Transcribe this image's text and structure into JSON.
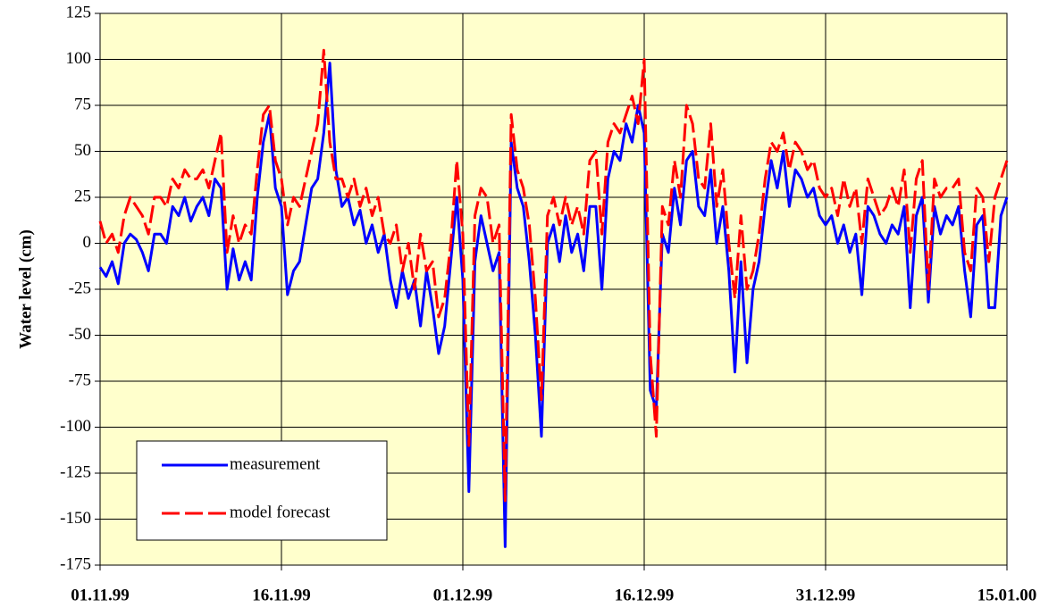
{
  "chart_data": {
    "type": "line",
    "y_label": "Water level (cm)",
    "categories": [
      "01.11.99",
      null,
      null,
      null,
      null,
      null,
      null,
      null,
      null,
      null,
      null,
      null,
      null,
      null,
      null,
      null,
      null,
      null,
      null,
      null,
      null,
      null,
      null,
      null,
      null,
      null,
      null,
      null,
      null,
      null,
      "16.11.99",
      null,
      null,
      null,
      null,
      null,
      null,
      null,
      null,
      null,
      null,
      null,
      null,
      null,
      null,
      null,
      null,
      null,
      null,
      null,
      null,
      null,
      null,
      null,
      null,
      null,
      null,
      null,
      null,
      null,
      "01.12.99",
      null,
      null,
      null,
      null,
      null,
      null,
      null,
      null,
      null,
      null,
      null,
      null,
      null,
      null,
      null,
      null,
      null,
      null,
      null,
      null,
      null,
      null,
      null,
      null,
      null,
      null,
      null,
      null,
      null,
      "16.12.99",
      null,
      null,
      null,
      null,
      null,
      null,
      null,
      null,
      null,
      null,
      null,
      null,
      null,
      null,
      null,
      null,
      null,
      null,
      null,
      null,
      null,
      null,
      null,
      null,
      null,
      null,
      null,
      null,
      null,
      "31.12.99",
      null,
      null,
      null,
      null,
      null,
      null,
      null,
      null,
      null,
      null,
      null,
      null,
      null,
      null,
      null,
      null,
      null,
      null,
      null,
      null,
      null,
      null,
      null,
      null,
      null,
      null,
      null,
      null,
      null,
      "15.01.00"
    ],
    "series": [
      {
        "name": "measurement",
        "color": "#0000ff",
        "dash": false,
        "values": [
          -13,
          -18,
          -10,
          -22,
          0,
          5,
          2,
          -5,
          -15,
          5,
          5,
          0,
          20,
          15,
          25,
          12,
          20,
          25,
          15,
          35,
          30,
          -25,
          -3,
          -20,
          -10,
          -20,
          25,
          55,
          70,
          30,
          20,
          -28,
          -15,
          -10,
          10,
          30,
          35,
          60,
          98,
          40,
          20,
          25,
          10,
          18,
          0,
          10,
          -5,
          5,
          -20,
          -35,
          -15,
          -30,
          -20,
          -45,
          -15,
          -35,
          -60,
          -45,
          -10,
          25,
          -20,
          -135,
          -10,
          15,
          0,
          -15,
          -5,
          -165,
          55,
          30,
          20,
          -10,
          -50,
          -105,
          0,
          10,
          -10,
          15,
          -5,
          5,
          -15,
          20,
          20,
          -25,
          35,
          50,
          45,
          65,
          55,
          75,
          60,
          -80,
          -90,
          5,
          -5,
          30,
          10,
          45,
          50,
          20,
          15,
          40,
          0,
          20,
          -15,
          -70,
          -10,
          -65,
          -25,
          -10,
          20,
          45,
          30,
          50,
          20,
          40,
          35,
          25,
          30,
          15,
          10,
          15,
          0,
          10,
          -5,
          5,
          -28,
          20,
          15,
          5,
          0,
          10,
          5,
          20,
          -35,
          15,
          25,
          -32,
          20,
          5,
          15,
          10,
          20,
          -15,
          -40,
          10,
          15,
          -35,
          -35,
          15,
          25
        ]
      },
      {
        "name": "model forecast",
        "color": "#ff0000",
        "dash": true,
        "values": [
          12,
          0,
          5,
          -5,
          15,
          25,
          20,
          15,
          5,
          25,
          25,
          20,
          35,
          30,
          40,
          35,
          35,
          40,
          30,
          45,
          60,
          -5,
          15,
          0,
          10,
          5,
          40,
          70,
          75,
          45,
          35,
          10,
          25,
          20,
          35,
          50,
          65,
          105,
          55,
          35,
          35,
          25,
          35,
          20,
          30,
          15,
          25,
          5,
          0,
          10,
          -15,
          0,
          -25,
          5,
          -15,
          -10,
          -40,
          -30,
          0,
          45,
          5,
          -110,
          15,
          30,
          25,
          0,
          10,
          -140,
          70,
          40,
          30,
          10,
          -30,
          -85,
          15,
          25,
          10,
          25,
          10,
          20,
          5,
          45,
          50,
          5,
          55,
          65,
          60,
          70,
          80,
          65,
          100,
          -60,
          -105,
          20,
          10,
          45,
          25,
          75,
          65,
          35,
          30,
          65,
          20,
          40,
          0,
          -30,
          15,
          -25,
          -15,
          5,
          35,
          55,
          50,
          60,
          40,
          55,
          50,
          40,
          45,
          30,
          25,
          30,
          15,
          35,
          20,
          30,
          0,
          35,
          25,
          15,
          20,
          30,
          20,
          40,
          -5,
          35,
          45,
          -25,
          35,
          25,
          30,
          30,
          35,
          -5,
          -15,
          30,
          25,
          -10,
          25,
          35,
          45
        ]
      }
    ],
    "ylim": [
      -175,
      125
    ],
    "yticks": [
      -175,
      -150,
      -125,
      -100,
      -75,
      -50,
      -25,
      0,
      25,
      50,
      75,
      100,
      125
    ],
    "grid": true,
    "legend": "lower left",
    "background": "#ffffcc"
  }
}
